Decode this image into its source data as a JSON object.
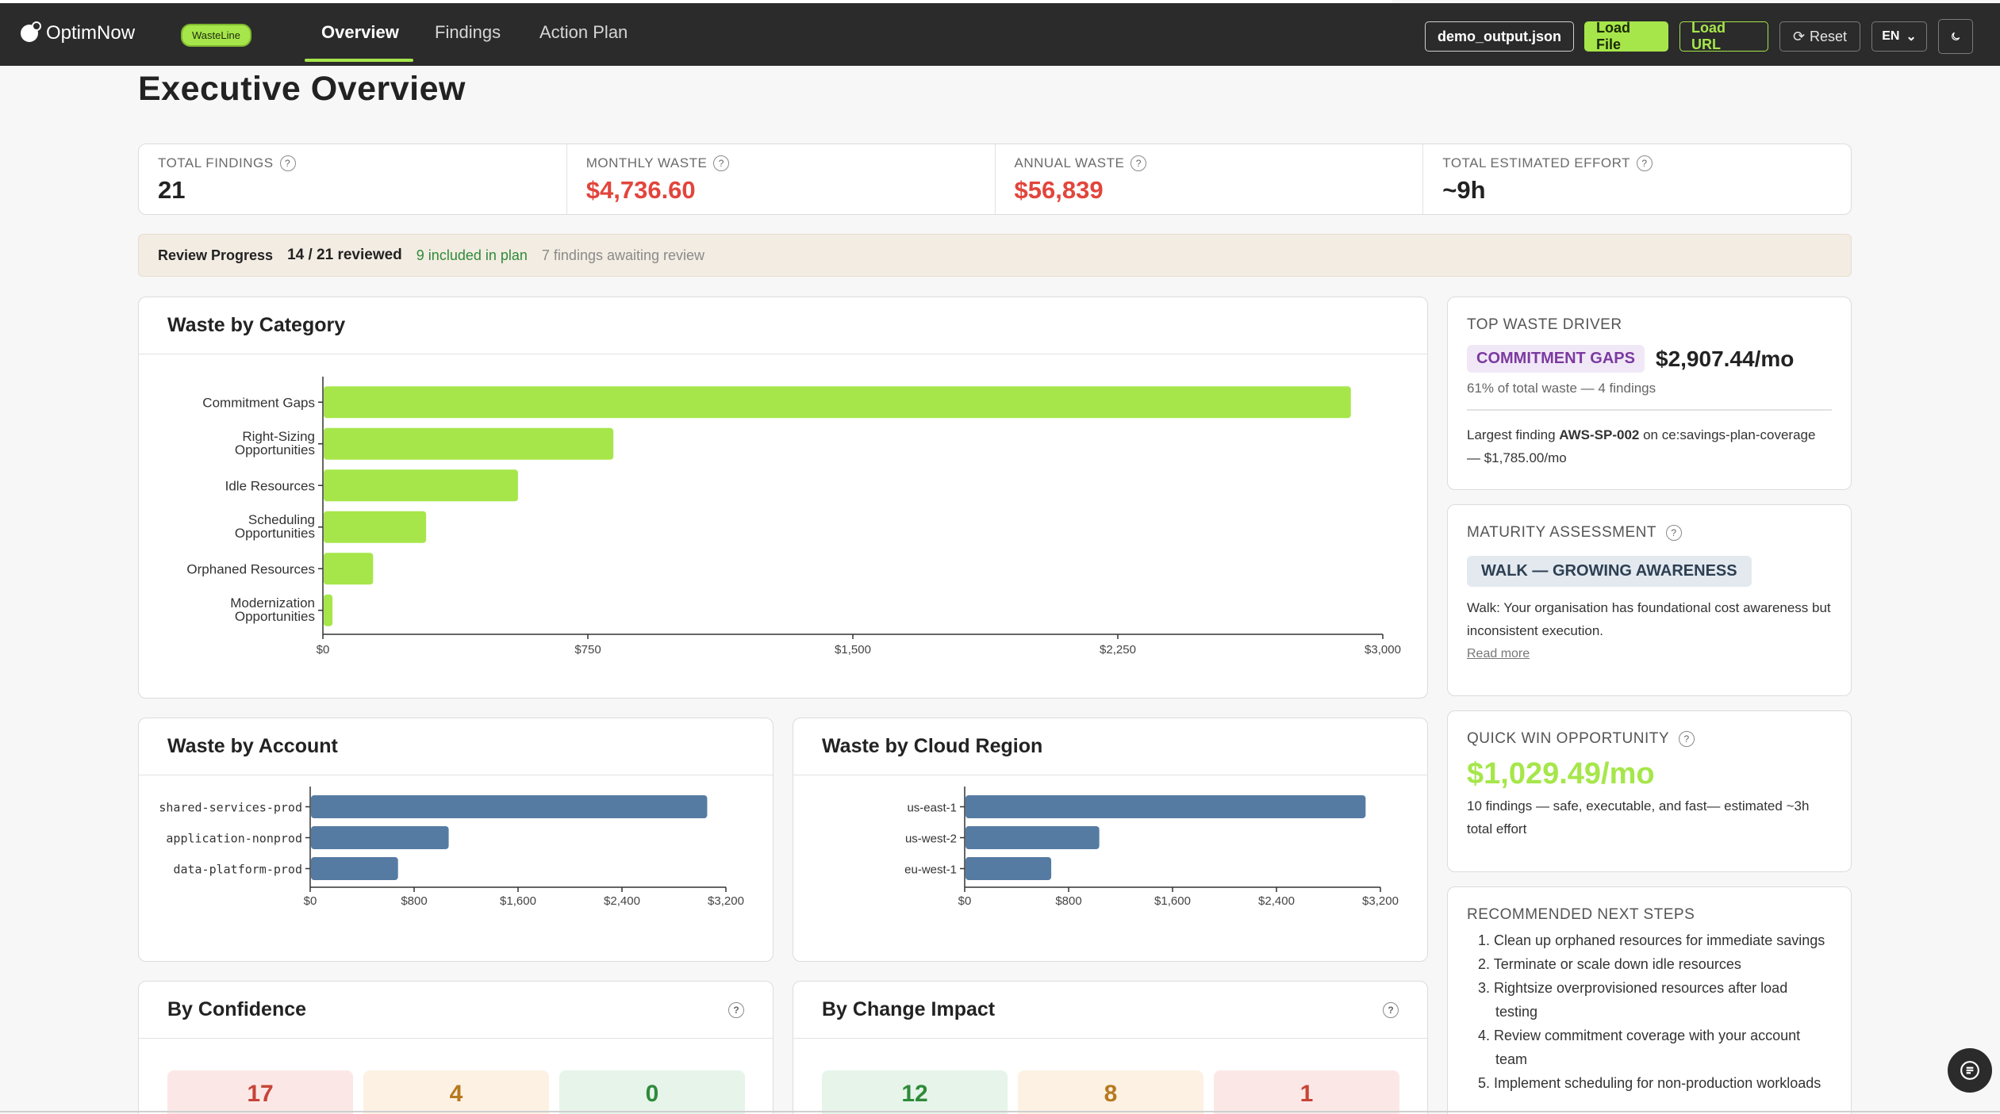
{
  "nav": {
    "brand": "OptimNow",
    "badge": "WasteLine",
    "tabs": [
      {
        "label": "Overview",
        "active": true
      },
      {
        "label": "Findings",
        "active": false
      },
      {
        "label": "Action Plan",
        "active": false
      }
    ],
    "file_label": "demo_output.json",
    "load_file_label": "Load File",
    "load_url_label": "Load URL",
    "reset_label": "Reset",
    "lang_label": "EN",
    "theme_icon": "moon-icon"
  },
  "page_title": "Executive Overview",
  "kpis": [
    {
      "label": "TOTAL FINDINGS",
      "value": "21",
      "color": "#222222"
    },
    {
      "label": "MONTHLY WASTE",
      "value": "$4,736.60",
      "color": "#e2453c"
    },
    {
      "label": "ANNUAL WASTE",
      "value": "$56,839",
      "color": "#e2453c"
    },
    {
      "label": "TOTAL ESTIMATED EFFORT",
      "value": "~9h",
      "color": "#222222"
    }
  ],
  "review": {
    "label": "Review Progress",
    "count": "14 / 21 reviewed",
    "in_plan": "9 included in plan",
    "awaiting": "7 findings awaiting review"
  },
  "waste_by_category": {
    "title": "Waste by Category"
  },
  "waste_by_account": {
    "title": "Waste by Account"
  },
  "waste_by_region": {
    "title": "Waste by Cloud Region"
  },
  "by_confidence": {
    "title": "By Confidence",
    "values": [
      "17",
      "4",
      "0"
    ]
  },
  "by_change_impact": {
    "title": "By Change Impact",
    "values": [
      "12",
      "8",
      "1"
    ]
  },
  "top_driver": {
    "title": "TOP WASTE DRIVER",
    "category": "COMMITMENT GAPS",
    "amount": "$2,907.44/mo",
    "share": "61% of total waste — 4 findings",
    "largest_prefix": "Largest finding",
    "largest_id": "AWS-SP-002",
    "largest_suffix": "on ce:savings-plan-coverage — $1,785.00/mo"
  },
  "maturity": {
    "title": "MATURITY ASSESSMENT",
    "level": "WALK — GROWING AWARENESS",
    "description": "Walk: Your organisation has foundational cost awareness but inconsistent execution.",
    "read_more": "Read more"
  },
  "quick_win": {
    "title": "QUICK WIN OPPORTUNITY",
    "amount": "$1,029.49/mo",
    "description": "10 findings — safe, executable, and fast— estimated ~3h total effort"
  },
  "next_steps": {
    "title": "RECOMMENDED NEXT STEPS",
    "items": [
      "1. Clean up orphaned resources for immediate savings",
      "2. Terminate or scale down idle resources",
      "3. Rightsize overprovisioned resources after load testing",
      "4. Review commitment coverage with your account team",
      "5. Implement scheduling for non-production workloads"
    ]
  },
  "chart_data": [
    {
      "type": "bar",
      "orientation": "horizontal",
      "title": "Waste by Category",
      "categories": [
        "Commitment Gaps",
        "Right-Sizing Opportunities",
        "Idle Resources",
        "Scheduling Opportunities",
        "Orphaned Resources",
        "Modernization Opportunities"
      ],
      "values": [
        2907.44,
        820,
        550,
        290,
        140,
        25
      ],
      "xlim": [
        0,
        3000
      ],
      "ticks": [
        "$0",
        "$750",
        "$1,500",
        "$2,250",
        "$3,000"
      ],
      "color": "#a6e64a"
    },
    {
      "type": "bar",
      "orientation": "horizontal",
      "title": "Waste by Account",
      "categories": [
        "shared-services-prod",
        "application-nonprod",
        "data-platform-prod"
      ],
      "values": [
        3050,
        1060,
        670
      ],
      "xlim": [
        0,
        3200
      ],
      "ticks": [
        "$0",
        "$800",
        "$1,600",
        "$2,400",
        "$3,200"
      ],
      "color": "#557ba3"
    },
    {
      "type": "bar",
      "orientation": "horizontal",
      "title": "Waste by Cloud Region",
      "categories": [
        "us-east-1",
        "us-west-2",
        "eu-west-1"
      ],
      "values": [
        3080,
        1030,
        660
      ],
      "xlim": [
        0,
        3200
      ],
      "ticks": [
        "$0",
        "$800",
        "$1,600",
        "$2,400",
        "$3,200"
      ],
      "color": "#557ba3"
    }
  ]
}
